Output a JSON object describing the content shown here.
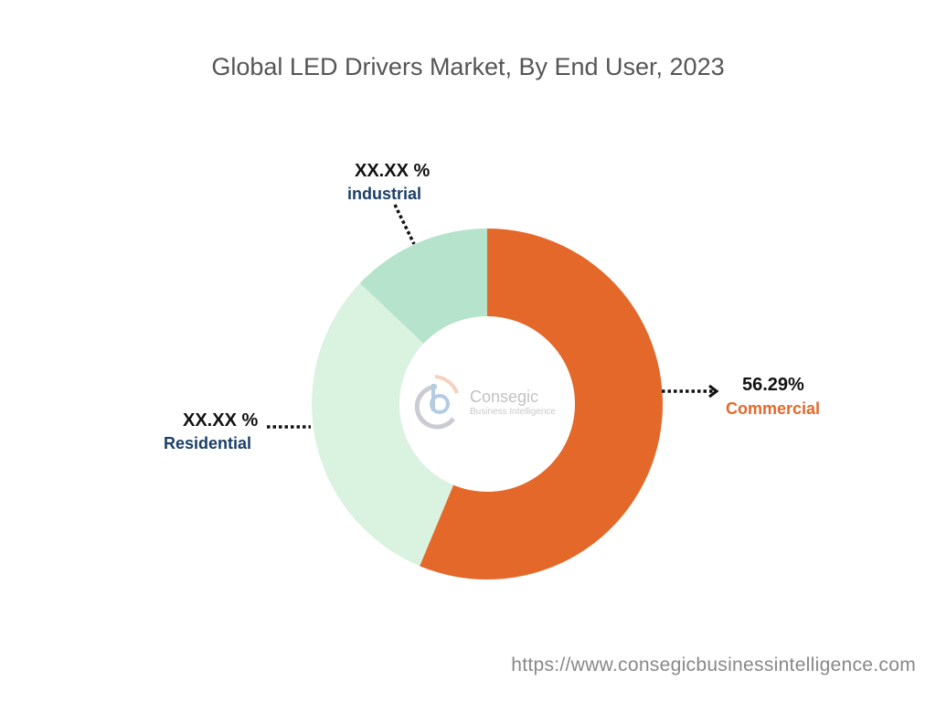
{
  "chart_data": {
    "type": "pie",
    "donut": true,
    "title": "Global LED Drivers Market, By End User, 2023",
    "slices": [
      {
        "label": "Commercial",
        "value": 56.29,
        "display": "56.29%",
        "color": "#E4682A"
      },
      {
        "label": "Residential",
        "value": 30.8,
        "display": "XX.XX %",
        "color": "#DAF2E0"
      },
      {
        "label": "industrial",
        "value": 12.91,
        "display": "XX.XX %",
        "color": "#B5E3CB"
      }
    ],
    "label_colors": {
      "Commercial": "#E4682A",
      "Residential": "#1B3F66",
      "industrial": "#1B3F66"
    }
  },
  "logo": {
    "name": "Consegic",
    "tagline": "Business Intelligence"
  },
  "footer": {
    "url": "https://www.consegicbusinessintelligence.com"
  }
}
